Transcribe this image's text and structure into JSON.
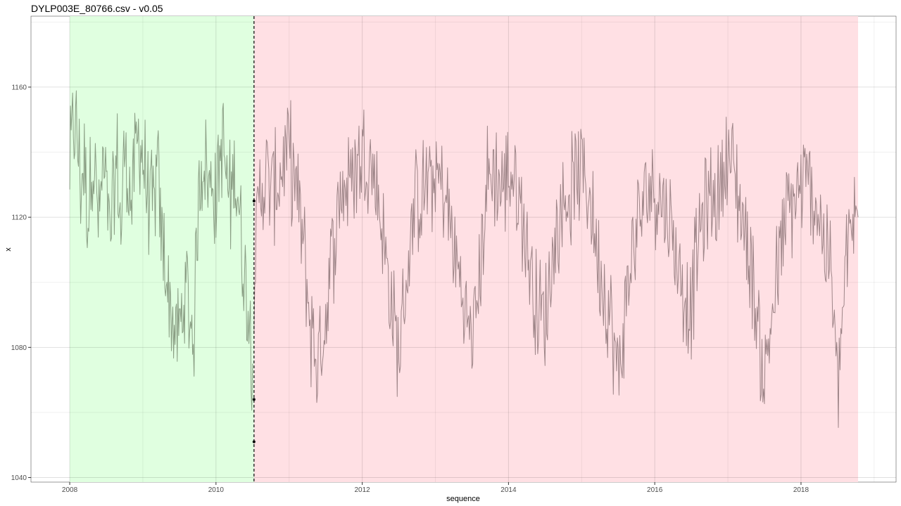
{
  "title": "DYLP003E_80766.csv - v0.05",
  "chart_data": {
    "type": "line",
    "title": "DYLP003E_80766.csv - v0.05",
    "xlabel": "sequence",
    "ylabel": "x",
    "xlim": [
      2007.47,
      2019.3
    ],
    "ylim": [
      1038.6,
      1181.8
    ],
    "x_ticks": [
      2008,
      2010,
      2012,
      2014,
      2016,
      2018
    ],
    "x_tick_labels": [
      "2008",
      "2010",
      "2012",
      "2014",
      "2016",
      "2018"
    ],
    "x_minor_ticks": [
      2009,
      2011,
      2013,
      2015,
      2017,
      2019
    ],
    "y_ticks": [
      1040,
      1080,
      1120,
      1160
    ],
    "y_tick_labels": [
      "1040",
      "1080",
      "1120",
      "1160"
    ],
    "y_minor_ticks": [
      1060,
      1100,
      1140,
      1180
    ],
    "grid": true,
    "legend": "none",
    "regions": [
      {
        "from": 2008.0,
        "to": 2010.52,
        "color": "#e0ffe0"
      },
      {
        "from": 2010.52,
        "to": 2018.78,
        "color": "#ffe0e4"
      }
    ],
    "changepoint": {
      "x": 2010.52,
      "markers_y": [
        1125,
        1051,
        1064
      ]
    },
    "series": [
      {
        "color": "#8a9e84",
        "x": [
          2008.0,
          2008.05,
          2008.1,
          2008.15,
          2008.2,
          2008.25,
          2008.3,
          2008.35,
          2008.4,
          2008.45,
          2008.5,
          2008.55,
          2008.6,
          2008.65,
          2008.7,
          2008.75,
          2008.8,
          2008.85,
          2008.9,
          2008.95,
          2009.0,
          2009.05,
          2009.1,
          2009.15,
          2009.2,
          2009.25,
          2009.3,
          2009.35,
          2009.4,
          2009.45,
          2009.5,
          2009.55,
          2009.6,
          2009.65,
          2009.7,
          2009.75,
          2009.8,
          2009.85,
          2009.9,
          2009.95,
          2010.0,
          2010.05,
          2010.1,
          2010.15,
          2010.2,
          2010.25,
          2010.3,
          2010.35,
          2010.4,
          2010.45,
          2010.5
        ],
        "y": [
          1135,
          1150,
          1145,
          1130,
          1138,
          1120,
          1140,
          1132,
          1118,
          1135,
          1128,
          1112,
          1125,
          1138,
          1115,
          1142,
          1130,
          1125,
          1140,
          1145,
          1138,
          1130,
          1125,
          1122,
          1135,
          1115,
          1108,
          1095,
          1090,
          1082,
          1085,
          1092,
          1098,
          1088,
          1084,
          1122,
          1135,
          1140,
          1128,
          1132,
          1125,
          1138,
          1142,
          1130,
          1125,
          1136,
          1128,
          1112,
          1100,
          1092,
          1075
        ]
      },
      {
        "color": "#9e8588",
        "x": [
          2010.52,
          2010.6,
          2010.7,
          2010.8,
          2010.9,
          2011.0,
          2011.1,
          2011.2,
          2011.3,
          2011.4,
          2011.5,
          2011.6,
          2011.7,
          2011.8,
          2011.9,
          2012.0,
          2012.1,
          2012.2,
          2012.3,
          2012.4,
          2012.5,
          2012.6,
          2012.7,
          2012.8,
          2012.9,
          2013.0,
          2013.1,
          2013.2,
          2013.3,
          2013.4,
          2013.5,
          2013.6,
          2013.7,
          2013.8,
          2013.9,
          2014.0,
          2014.1,
          2014.2,
          2014.3,
          2014.4,
          2014.5,
          2014.6,
          2014.7,
          2014.8,
          2014.9,
          2015.0,
          2015.1,
          2015.2,
          2015.3,
          2015.4,
          2015.5,
          2015.6,
          2015.7,
          2015.8,
          2015.9,
          2016.0,
          2016.1,
          2016.2,
          2016.3,
          2016.4,
          2016.5,
          2016.6,
          2016.7,
          2016.8,
          2016.9,
          2017.0,
          2017.1,
          2017.2,
          2017.3,
          2017.4,
          2017.5,
          2017.6,
          2017.7,
          2017.8,
          2017.9,
          2018.0,
          2018.1,
          2018.2,
          2018.3,
          2018.4,
          2018.5,
          2018.6,
          2018.7,
          2018.78
        ],
        "y": [
          1100,
          1130,
          1132,
          1128,
          1135,
          1140,
          1128,
          1110,
          1085,
          1075,
          1090,
          1110,
          1128,
          1130,
          1135,
          1140,
          1138,
          1130,
          1112,
          1092,
          1078,
          1100,
          1120,
          1128,
          1130,
          1132,
          1130,
          1118,
          1105,
          1092,
          1082,
          1100,
          1130,
          1135,
          1128,
          1135,
          1130,
          1118,
          1105,
          1092,
          1088,
          1108,
          1120,
          1126,
          1130,
          1135,
          1128,
          1112,
          1100,
          1088,
          1070,
          1092,
          1110,
          1120,
          1128,
          1130,
          1126,
          1118,
          1108,
          1098,
          1092,
          1115,
          1122,
          1126,
          1130,
          1140,
          1132,
          1120,
          1108,
          1088,
          1070,
          1090,
          1105,
          1120,
          1125,
          1128,
          1130,
          1125,
          1115,
          1105,
          1068,
          1100,
          1118,
          1120
        ]
      }
    ]
  }
}
